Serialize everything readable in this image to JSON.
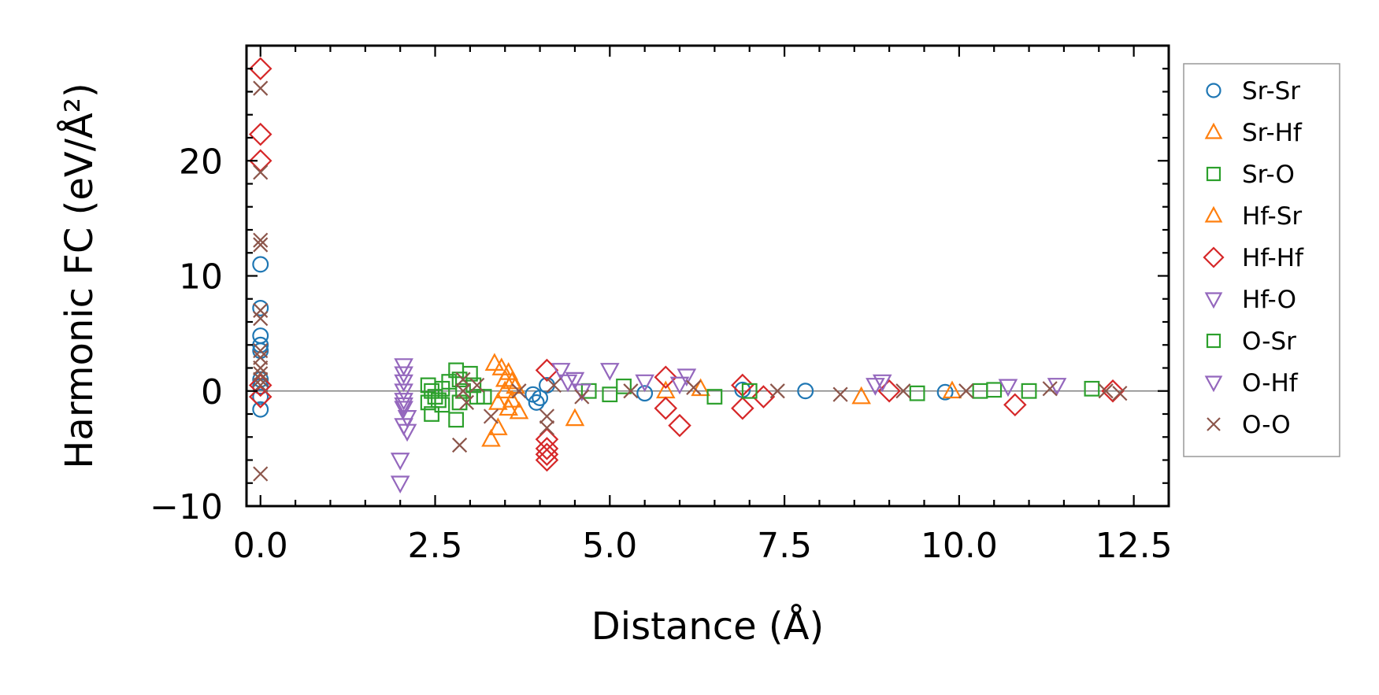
{
  "chart_data": {
    "type": "scatter",
    "xlabel": "Distance (Å)",
    "ylabel": "Harmonic FC (eV/Å²)",
    "xlim": [
      -0.2,
      13.0
    ],
    "ylim": [
      -10,
      30
    ],
    "xticks": [
      0.0,
      2.5,
      5.0,
      7.5,
      10.0,
      12.5
    ],
    "xtick_labels": [
      "0.0",
      "2.5",
      "5.0",
      "7.5",
      "10.0",
      "12.5"
    ],
    "yticks": [
      -10,
      0,
      10,
      20
    ],
    "ytick_labels": [
      "−10",
      "0",
      "10",
      "20"
    ],
    "grid": false,
    "reference_line_y": 0,
    "legend_position": "outside-right",
    "series": [
      {
        "name": "Sr-Sr",
        "marker": "circle",
        "color": "#1f77b4",
        "points": [
          [
            0,
            11
          ],
          [
            0,
            7.2
          ],
          [
            0,
            4.8
          ],
          [
            0,
            4
          ],
          [
            0,
            3.5
          ],
          [
            0,
            1
          ],
          [
            0,
            0.4
          ],
          [
            0,
            -0.5
          ],
          [
            0,
            -1.6
          ],
          [
            3.9,
            -0.3
          ],
          [
            3.95,
            -1
          ],
          [
            4.0,
            -0.6
          ],
          [
            4.1,
            0.5
          ],
          [
            5.5,
            -0.2
          ],
          [
            6.9,
            0.1
          ],
          [
            7.8,
            0
          ],
          [
            9.8,
            -0.1
          ]
        ]
      },
      {
        "name": "Sr-Hf",
        "marker": "triangle-up",
        "color": "#ff7f0e",
        "points": [
          [
            3.35,
            2.4
          ],
          [
            3.45,
            2
          ],
          [
            3.55,
            1.6
          ],
          [
            3.6,
            0.8
          ],
          [
            3.5,
            0
          ],
          [
            3.6,
            -0.8
          ],
          [
            3.55,
            -1.5
          ],
          [
            3.7,
            -1.8
          ],
          [
            3.4,
            -3.2
          ],
          [
            3.3,
            -4.2
          ],
          [
            4.5,
            -2.4
          ],
          [
            6.3,
            0.2
          ],
          [
            8.6,
            -0.5
          ]
        ]
      },
      {
        "name": "Sr-O",
        "marker": "square",
        "color": "#2ca02c",
        "points": [
          [
            2.4,
            0.5
          ],
          [
            2.45,
            0
          ],
          [
            2.5,
            -0.5
          ],
          [
            2.4,
            -1
          ],
          [
            2.45,
            -2
          ],
          [
            2.55,
            -0.8
          ],
          [
            2.6,
            0.2
          ],
          [
            2.8,
            1.8
          ],
          [
            2.85,
            1
          ],
          [
            2.9,
            0
          ],
          [
            2.85,
            -1
          ],
          [
            2.8,
            -2.5
          ],
          [
            3.05,
            0.5
          ],
          [
            3.1,
            -0.5
          ],
          [
            4.7,
            0
          ],
          [
            5.0,
            -0.3
          ],
          [
            6.5,
            -0.5
          ],
          [
            9.4,
            -0.2
          ],
          [
            10.5,
            0.1
          ],
          [
            11.0,
            0
          ]
        ]
      },
      {
        "name": "Hf-Sr",
        "marker": "triangle-up",
        "color": "#ff7f0e",
        "points": [
          [
            3.5,
            1
          ],
          [
            3.4,
            -1
          ],
          [
            3.65,
            0.4
          ],
          [
            5.8,
            0
          ],
          [
            9.9,
            0
          ]
        ]
      },
      {
        "name": "Hf-Hf",
        "marker": "diamond",
        "color": "#d62728",
        "points": [
          [
            0,
            28
          ],
          [
            0,
            22.3
          ],
          [
            0,
            20
          ],
          [
            0,
            0.5
          ],
          [
            0,
            -0.5
          ],
          [
            4.1,
            1.8
          ],
          [
            4.1,
            -4.2
          ],
          [
            4.1,
            -5
          ],
          [
            4.1,
            -5.5
          ],
          [
            4.1,
            -6
          ],
          [
            5.8,
            1.2
          ],
          [
            5.8,
            -1.5
          ],
          [
            6.0,
            -3
          ],
          [
            6.9,
            0.5
          ],
          [
            6.9,
            -1.5
          ],
          [
            7.2,
            -0.5
          ],
          [
            9.0,
            0
          ],
          [
            10.8,
            -1.2
          ],
          [
            12.2,
            0
          ]
        ]
      },
      {
        "name": "Hf-O",
        "marker": "triangle-down",
        "color": "#9467bd",
        "points": [
          [
            2.05,
            2.2
          ],
          [
            2.05,
            1.5
          ],
          [
            2.05,
            0.8
          ],
          [
            2.05,
            0
          ],
          [
            2.05,
            -0.8
          ],
          [
            2.05,
            -1.5
          ],
          [
            2.1,
            -2.3
          ],
          [
            2.05,
            -3
          ],
          [
            2.1,
            -3.5
          ],
          [
            2.0,
            -6
          ],
          [
            2.0,
            -8
          ],
          [
            4.3,
            1.8
          ],
          [
            4.5,
            1
          ],
          [
            4.6,
            0
          ],
          [
            5.0,
            1.8
          ],
          [
            5.5,
            0.8
          ],
          [
            6.1,
            1.3
          ],
          [
            8.9,
            0.8
          ],
          [
            11.4,
            0.5
          ]
        ]
      },
      {
        "name": "O-Sr",
        "marker": "square",
        "color": "#2ca02c",
        "points": [
          [
            2.6,
            -1.2
          ],
          [
            2.7,
            0.8
          ],
          [
            3.0,
            1.5
          ],
          [
            3.2,
            -0.5
          ],
          [
            5.2,
            0.4
          ],
          [
            7.0,
            0
          ],
          [
            10.3,
            0
          ],
          [
            11.9,
            0.2
          ]
        ]
      },
      {
        "name": "O-Hf",
        "marker": "triangle-down",
        "color": "#9467bd",
        "points": [
          [
            2.05,
            -1.2
          ],
          [
            4.4,
            0.8
          ],
          [
            6.0,
            0.6
          ],
          [
            8.8,
            0.5
          ],
          [
            10.7,
            0.4
          ]
        ]
      },
      {
        "name": "O-O",
        "marker": "x",
        "color": "#8c564b",
        "points": [
          [
            0,
            26.3
          ],
          [
            0,
            19
          ],
          [
            0,
            13.1
          ],
          [
            0,
            12.7
          ],
          [
            0,
            7
          ],
          [
            0,
            6.3
          ],
          [
            0,
            3.5
          ],
          [
            0,
            2.9
          ],
          [
            0,
            2
          ],
          [
            0,
            1.5
          ],
          [
            0,
            1
          ],
          [
            0,
            0.5
          ],
          [
            0,
            -7.2
          ],
          [
            2.85,
            -4.7
          ],
          [
            2.9,
            1
          ],
          [
            2.9,
            0
          ],
          [
            2.95,
            -1
          ],
          [
            3.1,
            0.5
          ],
          [
            3.3,
            -2.2
          ],
          [
            3.7,
            0
          ],
          [
            4.1,
            -2.2
          ],
          [
            4.1,
            -3.2
          ],
          [
            4.2,
            0.5
          ],
          [
            4.6,
            -0.5
          ],
          [
            5.3,
            0
          ],
          [
            6.2,
            0.3
          ],
          [
            7.4,
            0
          ],
          [
            8.3,
            -0.3
          ],
          [
            9.2,
            0
          ],
          [
            10.1,
            0
          ],
          [
            11.3,
            0.2
          ],
          [
            12.1,
            0
          ],
          [
            12.3,
            -0.2
          ]
        ]
      }
    ]
  }
}
